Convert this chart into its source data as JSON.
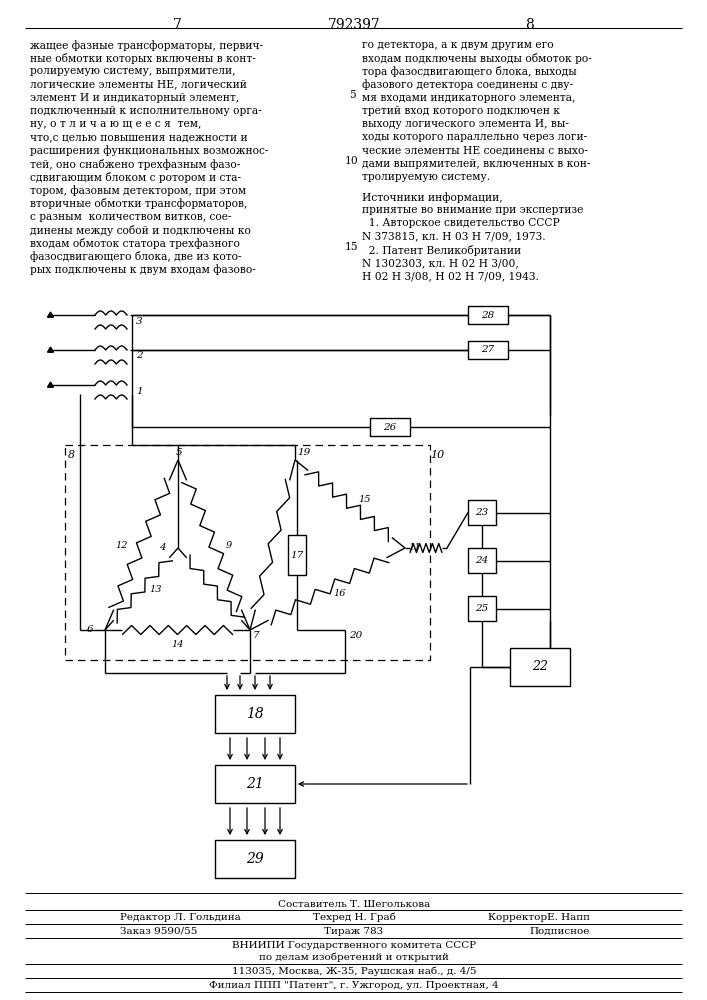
{
  "page_number_left": "7",
  "patent_number": "792397",
  "page_number_right": "8",
  "text_left": "жащее фазные трансформаторы, первич-\nные обмотки которых включены в конт-\nролируемую систему, выпрямители,\nлогические элементы НЕ, логический\nэлемент И и индикаторный элемент,\nподключенный к исполнительному орга-\nну, о т л и ч а ю щ е е с я  тем,\nчто,с целью повышения надежности и\nрасширения функциональных возможнос-\nтей, оно снабжено трехфазным фазо-\nсдвигающим блоком с ротором и ста-\nтором, фазовым детектором, при этом\nвторичные обмотки трансформаторов,\nс разным  количеством витков, сое-\nдинены между собой и подключены ко\nвходам обмоток статора трехфазного\nфазосдвигающего блока, две из кото-\nрых подключены к двум входам фазово-",
  "text_right": "го детектора, а к двум другим его\nвходам подключены выходы обмоток ро-\nтора фазосдвигающего блока, выходы\nфазового детектора соединены с дву-\nмя входами индикаторного элемента,\nтретий вход которого подключен к\nвыходу логического элемента И, вы-\nходы которого параллельно через логи-\nческие элементы НЕ соединены с выхо-\nдами выпрямителей, включенных в кон-\nтролируемую систему.",
  "src_header": "Источники информации,",
  "src_line2": "принятые во внимание при экспертизе",
  "src_line3": "  1. Авторское свидетельство СССР",
  "src_line4": "N 373815, кл. Н 03 Н 7/09, 1973.",
  "src_line5": "  2. Патент Великобритании",
  "src_line6": "N 1302303, кл. Н 02 Н 3/00,",
  "src_line7": "Н 02 Н 3/08, Н 02 Н 7/09, 1943.",
  "footer_line1": "Составитель Т. Шеголькова",
  "footer_line2_left": "Редактор Л. Гольдина",
  "footer_line2_mid": "Техред Н. Граб",
  "footer_line2_right": "КорректорЕ. Напп",
  "footer_line3_left": "Заказ 9590/55",
  "footer_line3_mid": "Тираж 783",
  "footer_line3_right": "Подписное",
  "footer_line4": "ВНИИПИ Государственного комитета СССР",
  "footer_line5": "по делам изобретений и открытий",
  "footer_line6": "113035, Москва, Ж-35, Раушская наб., д. 4/5",
  "footer_line7": "Филиал ППП \"Патент\", г. Ужгород, ул. Проектная, 4"
}
